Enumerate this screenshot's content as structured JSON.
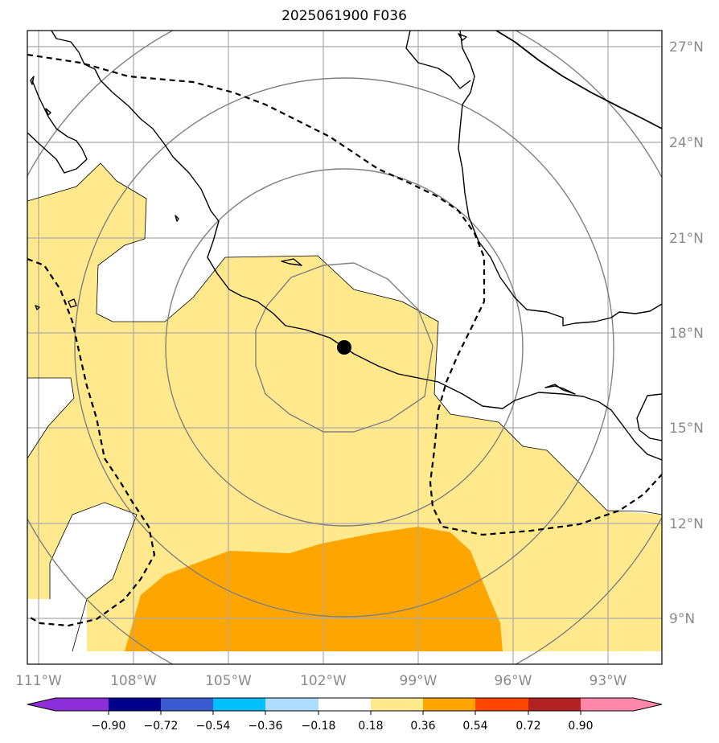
{
  "title": "2025061900 F036",
  "lon_labels": [
    "111°W",
    "108°W",
    "105°W",
    "102°W",
    "99°W",
    "96°W",
    "93°W"
  ],
  "lat_labels": [
    "27°N",
    "24°N",
    "21°N",
    "18°N",
    "15°N",
    "12°N",
    "9°N"
  ],
  "colorbar": {
    "colors": [
      "#8d2fd8",
      "#00008b",
      "#3a5bd1",
      "#00bfff",
      "#addcff",
      "#ffffff",
      "#ffe98c",
      "#ffa500",
      "#ff4500",
      "#b22222",
      "#ff88aa"
    ],
    "tick_labels": [
      "−0.90",
      "−0.72",
      "−0.54",
      "−0.36",
      "−0.18",
      "0.18",
      "0.36",
      "0.54",
      "0.72",
      "0.90"
    ]
  },
  "storm_center": {
    "lon": "101.4°W",
    "lat": "17.5°N"
  }
}
